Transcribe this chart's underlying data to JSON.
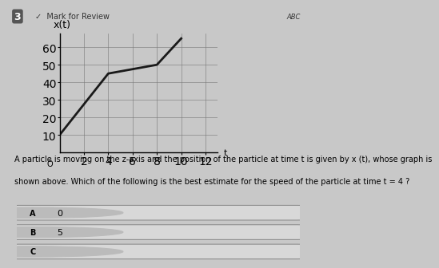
{
  "title": "x(t)",
  "xlabel": "t",
  "xlim": [
    0,
    13
  ],
  "ylim": [
    0,
    68
  ],
  "xticks": [
    2,
    4,
    6,
    8,
    10,
    12
  ],
  "yticks": [
    10,
    20,
    30,
    40,
    50,
    60
  ],
  "t_values": [
    0,
    4,
    8,
    10
  ],
  "x_values": [
    10,
    45,
    50,
    65
  ],
  "line_color": "#1a1a1a",
  "line_width": 2.0,
  "bg_color": "#c8c8c8",
  "header_color": "#b0b0b0",
  "grid_color": "#777777",
  "answer_A": "0",
  "answer_B": "5",
  "question_line1": "A particle is moving on the z-axis and the position of the particle at time t is given by x (t), whose graph is",
  "question_line2": "shown above. Which of the following is the best estimate for the speed of the particle at time t = 4 ?",
  "font_size_title": 9,
  "font_size_tick": 7,
  "font_size_question": 7,
  "font_size_answer": 8
}
